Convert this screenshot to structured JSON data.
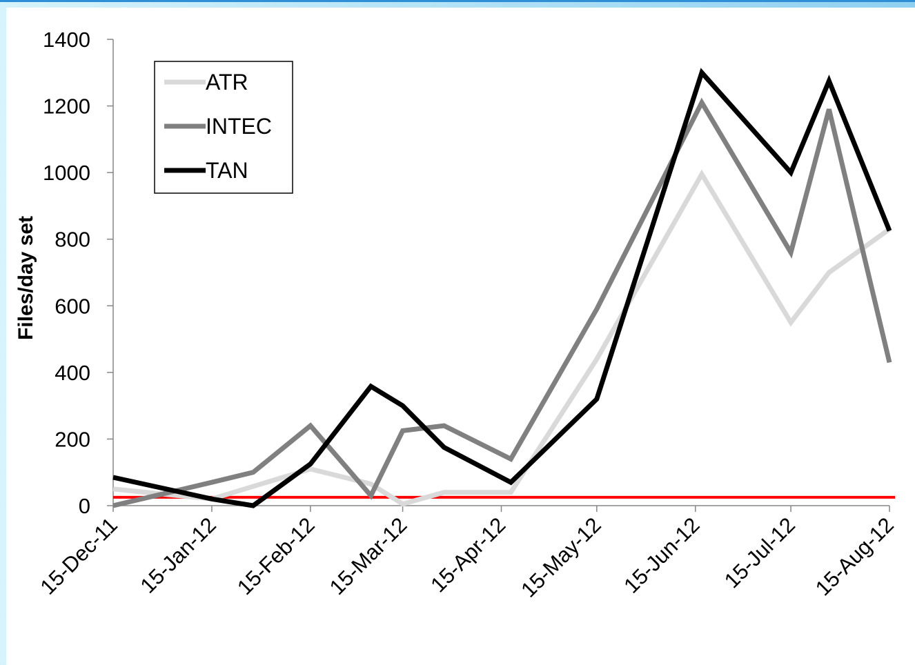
{
  "chart_data": {
    "type": "line",
    "title": "",
    "xlabel": "",
    "ylabel": "Files/day set",
    "ylim": [
      0,
      1400
    ],
    "yticks": [
      0,
      200,
      400,
      600,
      800,
      1000,
      1200,
      1400
    ],
    "xlim": [
      "2011-12-15",
      "2012-08-15"
    ],
    "xticks": [
      {
        "date": "2011-12-15",
        "label": "15-Dec-11"
      },
      {
        "date": "2012-01-15",
        "label": "15-Jan-12"
      },
      {
        "date": "2012-02-15",
        "label": "15-Feb-12"
      },
      {
        "date": "2012-03-15",
        "label": "15-Mar-12"
      },
      {
        "date": "2012-04-15",
        "label": "15-Apr-12"
      },
      {
        "date": "2012-05-15",
        "label": "15-May-12"
      },
      {
        "date": "2012-06-15",
        "label": "15-Jun-12"
      },
      {
        "date": "2012-07-15",
        "label": "15-Jul-12"
      },
      {
        "date": "2012-08-15",
        "label": "15-Aug-12"
      }
    ],
    "grid": false,
    "legend": "top-left",
    "series": [
      {
        "name": "ATR",
        "color": "#d9d9d9",
        "points": [
          [
            "2011-12-15",
            50
          ],
          [
            "2012-01-15",
            20
          ],
          [
            "2012-02-15",
            110
          ],
          [
            "2012-03-05",
            65
          ],
          [
            "2012-03-15",
            5
          ],
          [
            "2012-03-28",
            40
          ],
          [
            "2012-04-18",
            40
          ],
          [
            "2012-05-15",
            440
          ],
          [
            "2012-06-17",
            995
          ],
          [
            "2012-07-15",
            550
          ],
          [
            "2012-07-27",
            700
          ],
          [
            "2012-08-15",
            830
          ]
        ]
      },
      {
        "name": "INTEC",
        "color": "#808080",
        "points": [
          [
            "2011-12-15",
            0
          ],
          [
            "2012-01-15",
            70
          ],
          [
            "2012-01-28",
            100
          ],
          [
            "2012-02-15",
            240
          ],
          [
            "2012-03-05",
            30
          ],
          [
            "2012-03-15",
            225
          ],
          [
            "2012-03-28",
            240
          ],
          [
            "2012-04-18",
            140
          ],
          [
            "2012-05-15",
            590
          ],
          [
            "2012-06-17",
            1210
          ],
          [
            "2012-07-15",
            760
          ],
          [
            "2012-07-27",
            1190
          ],
          [
            "2012-08-15",
            430
          ]
        ]
      },
      {
        "name": "TAN",
        "color": "#000000",
        "points": [
          [
            "2011-12-15",
            85
          ],
          [
            "2012-01-15",
            20
          ],
          [
            "2012-01-28",
            0
          ],
          [
            "2012-02-15",
            125
          ],
          [
            "2012-03-05",
            358
          ],
          [
            "2012-03-15",
            300
          ],
          [
            "2012-03-28",
            175
          ],
          [
            "2012-04-18",
            70
          ],
          [
            "2012-05-15",
            320
          ],
          [
            "2012-06-17",
            1300
          ],
          [
            "2012-07-15",
            1000
          ],
          [
            "2012-07-27",
            1275
          ],
          [
            "2012-08-15",
            825
          ]
        ]
      }
    ],
    "reference_line": {
      "value": 25,
      "color": "#ff0000"
    }
  }
}
